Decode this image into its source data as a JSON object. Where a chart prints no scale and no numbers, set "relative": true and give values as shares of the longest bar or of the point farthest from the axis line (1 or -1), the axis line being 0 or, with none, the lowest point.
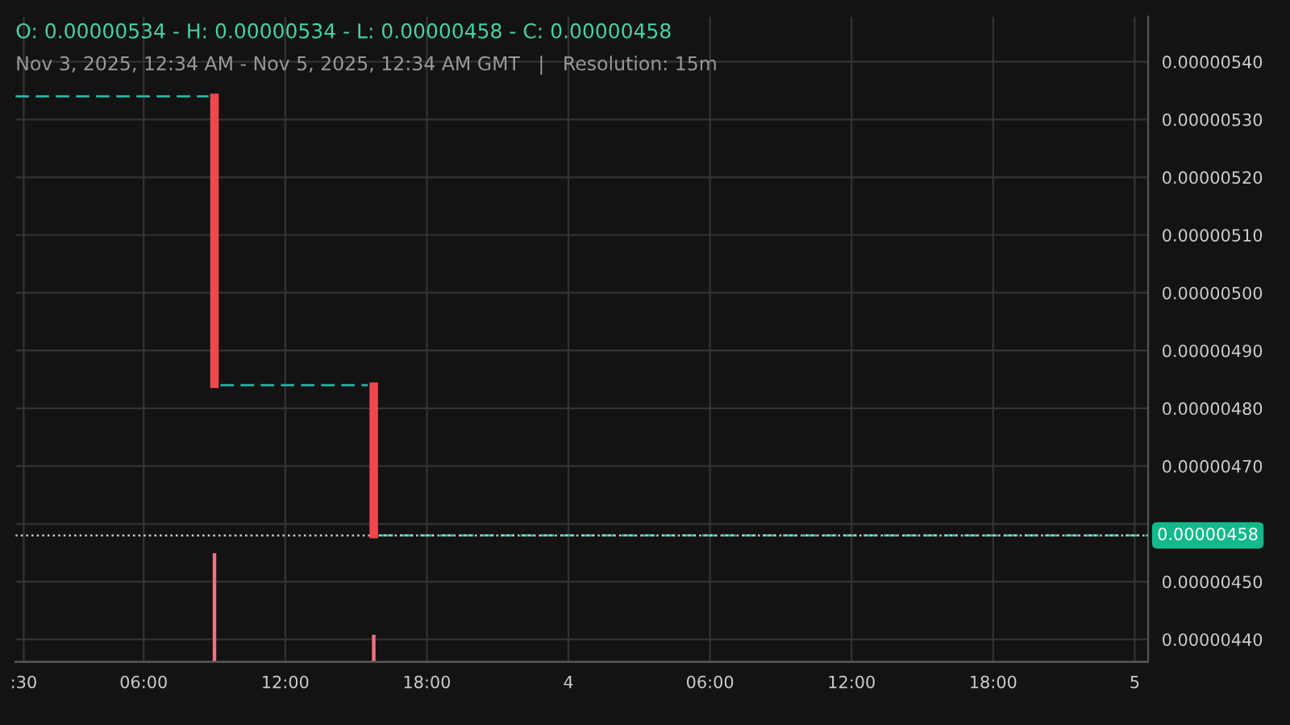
{
  "chart_data": [
    {
      "type": "candlestick",
      "title": "O: 0.00000534 - H: 0.00000534 - L: 0.00000458 - C: 0.00000458",
      "subtitle": "Nov 3, 2025, 12:34 AM - Nov 5, 2025, 12:34 AM GMT   |   Resolution: 15m",
      "x": [
        "2025-11-03T09:00",
        "2025-11-03T15:45"
      ],
      "ohlc": [
        [
          5.34e-06,
          5.34e-06,
          4.84e-06,
          4.84e-06
        ],
        [
          4.84e-06,
          4.84e-06,
          4.58e-06,
          4.58e-06
        ]
      ],
      "colors": [
        "#f0474f",
        "#f0474f"
      ],
      "series": [
        {
          "type": "line",
          "line_style": "dashed",
          "color": "#2ab5a5",
          "x": [
            "2025-11-03T00:34",
            "2025-11-03T08:45",
            "2025-11-03T08:50",
            "2025-11-03T09:15",
            "2025-11-03T15:30",
            "2025-11-03T15:35",
            "2025-11-03T16:00",
            "2025-11-05T00:34"
          ],
          "values": [
            5.34e-06,
            5.34e-06,
            null,
            4.84e-06,
            4.84e-06,
            null,
            4.58e-06,
            4.58e-06
          ]
        }
      ],
      "xlim": [
        "2025-11-03T00:34",
        "2025-11-05T00:34"
      ],
      "xticks": [
        {
          "value": "2025-11-03T00:55",
          "label": ":30"
        },
        {
          "value": "2025-11-03T06:00",
          "label": "06:00"
        },
        {
          "value": "2025-11-03T12:00",
          "label": "12:00"
        },
        {
          "value": "2025-11-03T18:00",
          "label": "18:00"
        },
        {
          "value": "2025-11-04T00:00",
          "label": "4"
        },
        {
          "value": "2025-11-04T06:00",
          "label": "06:00"
        },
        {
          "value": "2025-11-04T12:00",
          "label": "12:00"
        },
        {
          "value": "2025-11-04T18:00",
          "label": "18:00"
        },
        {
          "value": "2025-11-05T00:00",
          "label": "5"
        }
      ],
      "ylim": [
        4.361e-06,
        5.478e-06
      ],
      "yticks": [
        {
          "value": 4.4e-06,
          "label": "0.00000440"
        },
        {
          "value": 4.5e-06,
          "label": "0.00000450"
        },
        {
          "value": 4.6e-06,
          "label": null
        },
        {
          "value": 4.7e-06,
          "label": "0.00000470"
        },
        {
          "value": 4.8e-06,
          "label": "0.00000480"
        },
        {
          "value": 4.9e-06,
          "label": "0.00000490"
        },
        {
          "value": 5e-06,
          "label": "0.00000500"
        },
        {
          "value": 5.1e-06,
          "label": "0.00000510"
        },
        {
          "value": 5.2e-06,
          "label": "0.00000520"
        },
        {
          "value": 5.3e-06,
          "label": "0.00000530"
        },
        {
          "value": 5.4e-06,
          "label": "0.00000540"
        }
      ],
      "ref_lines": [
        {
          "axis": "y",
          "value": 4.58e-06,
          "label": "0.00000458",
          "color": "#cccccc",
          "line_style": "dotted"
        }
      ],
      "grid": true
    },
    {
      "type": "bar",
      "relative": true,
      "x": [
        "2025-11-03T09:00",
        "2025-11-03T15:45"
      ],
      "xlim": [
        "2025-11-03T00:34",
        "2025-11-05T00:34"
      ],
      "series": [
        {
          "color": "#f07080",
          "values": [
            1,
            0.25
          ]
        }
      ]
    }
  ]
}
